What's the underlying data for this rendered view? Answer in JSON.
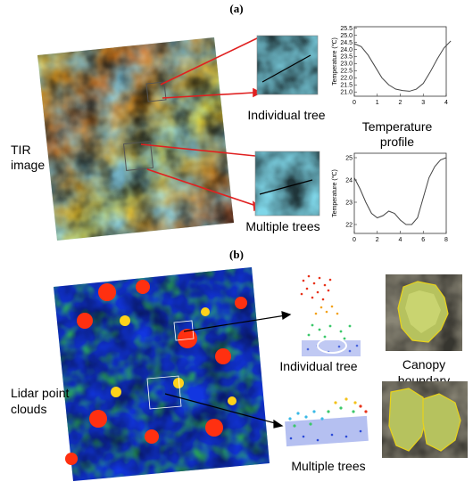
{
  "panel_a": {
    "label": "(a)",
    "tir_label_line1": "TIR",
    "tir_label_line2": "image",
    "individual_label": "Individual tree",
    "multiple_label": "Multiple trees",
    "profile_title_line1": "Temperature",
    "profile_title_line2": "profile"
  },
  "panel_b": {
    "label": "(b)",
    "lidar_label_line1": "Lidar point",
    "lidar_label_line2": "clouds",
    "individual_label": "Individual tree",
    "multiple_label": "Multiple trees",
    "canopy_line1": "Canopy",
    "canopy_line2": "boundary"
  },
  "chart_data": [
    {
      "type": "line",
      "ylabel": "Temperature (℃)",
      "xlim": [
        0,
        4
      ],
      "ylim": [
        20.7,
        25.6
      ],
      "x_ticks": [
        "0",
        "1",
        "2",
        "3",
        "4"
      ],
      "y_ticks": [
        "21.0",
        "21.5",
        "22.0",
        "22.5",
        "23.0",
        "23.5",
        "24.0",
        "24.5",
        "25.0",
        "25.5"
      ],
      "x": [
        0,
        0.3,
        0.6,
        0.9,
        1.2,
        1.5,
        1.8,
        2.1,
        2.4,
        2.7,
        3.0,
        3.3,
        3.6,
        3.9,
        4.2
      ],
      "y": [
        24.4,
        24.2,
        23.6,
        22.8,
        22.0,
        21.5,
        21.2,
        21.1,
        21.05,
        21.2,
        21.6,
        22.4,
        23.3,
        24.1,
        24.6
      ]
    },
    {
      "type": "line",
      "ylabel": "Temperature (℃)",
      "xlim": [
        0,
        8
      ],
      "ylim": [
        21.6,
        25.2
      ],
      "x_ticks": [
        "0",
        "2",
        "4",
        "6",
        "8"
      ],
      "y_ticks": [
        "22",
        "23",
        "24",
        "25"
      ],
      "x": [
        0,
        0.5,
        1,
        1.5,
        2,
        2.5,
        3,
        3.5,
        4,
        4.5,
        5,
        5.5,
        6,
        6.5,
        7,
        7.5,
        8
      ],
      "y": [
        24.1,
        23.6,
        23.0,
        22.5,
        22.3,
        22.4,
        22.6,
        22.5,
        22.2,
        22.0,
        22.0,
        22.3,
        23.2,
        24.1,
        24.6,
        24.9,
        25.0
      ]
    }
  ]
}
